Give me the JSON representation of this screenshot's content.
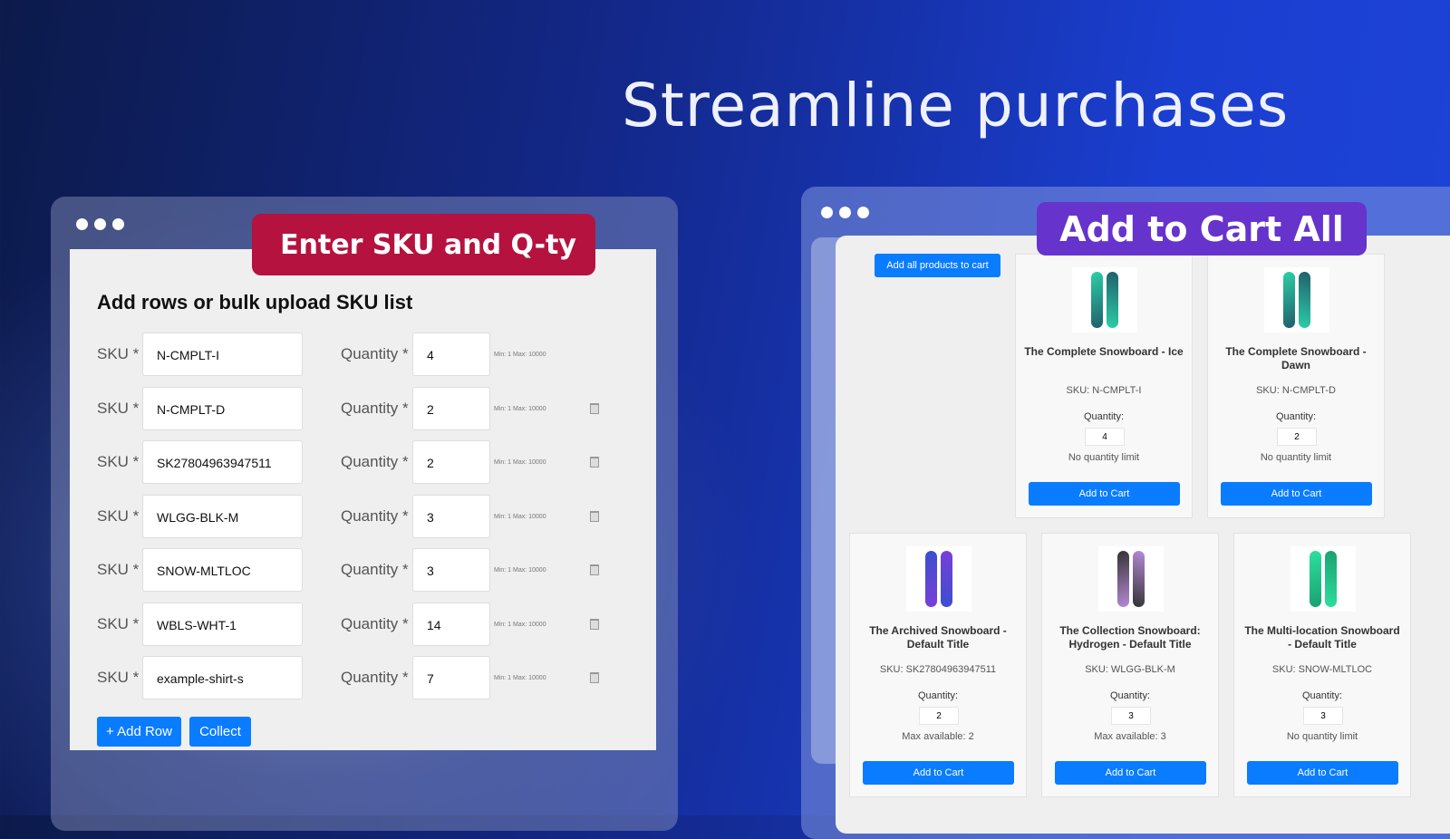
{
  "hero_title": "Streamline purchases",
  "left": {
    "badge": "Enter SKU and Q-ty",
    "heading": "Add rows or bulk upload SKU list",
    "sku_label": "SKU *",
    "qty_label": "Quantity *",
    "minmax": "Min: 1  Max: 10000",
    "rows": [
      {
        "sku": "N-CMPLT-I",
        "qty": "4",
        "deletable": false
      },
      {
        "sku": "N-CMPLT-D",
        "qty": "2",
        "deletable": true
      },
      {
        "sku": "SK27804963947511",
        "qty": "2",
        "deletable": true
      },
      {
        "sku": "WLGG-BLK-M",
        "qty": "3",
        "deletable": true
      },
      {
        "sku": "SNOW-MLTLOC",
        "qty": "3",
        "deletable": true
      },
      {
        "sku": "WBLS-WHT-1",
        "qty": "14",
        "deletable": true
      },
      {
        "sku": "example-shirt-s",
        "qty": "7",
        "deletable": true
      }
    ],
    "add_row": "+ Add Row",
    "collect": "Collect"
  },
  "right": {
    "badge": "Add to Cart All",
    "add_all": "Add all products to cart",
    "quantity_label": "Quantity:",
    "add_to_cart": "Add to Cart",
    "products": [
      {
        "title": "The Complete Snowboard - Ice",
        "sku": "SKU: N-CMPLT-I",
        "qty": "4",
        "limit": "No quantity limit",
        "colors": [
          "#2ccfa8",
          "#1f5f6a"
        ]
      },
      {
        "title": "The Complete Snowboard - Dawn",
        "sku": "SKU: N-CMPLT-D",
        "qty": "2",
        "limit": "No quantity limit",
        "colors": [
          "#2ccfa8",
          "#1f5f6a"
        ]
      },
      {
        "title": "The Archived Snowboard - Default Title",
        "sku": "SKU: SK27804963947511",
        "qty": "2",
        "limit": "Max available: 2",
        "colors": [
          "#3a4fd0",
          "#7a3fd8"
        ]
      },
      {
        "title": "The Collection Snowboard: Hydrogen - Default Title",
        "sku": "SKU: WLGG-BLK-M",
        "qty": "3",
        "limit": "Max available: 3",
        "colors": [
          "#333333",
          "#b58ad8"
        ]
      },
      {
        "title": "The Multi-location Snowboard - Default Title",
        "sku": "SKU: SNOW-MLTLOC",
        "qty": "3",
        "limit": "No quantity limit",
        "colors": [
          "#2de0a0",
          "#1aa070"
        ]
      }
    ]
  },
  "colors": {
    "accent_blue": "#0a7cff",
    "badge_red": "#b5123f",
    "badge_purple": "#6633cc"
  }
}
